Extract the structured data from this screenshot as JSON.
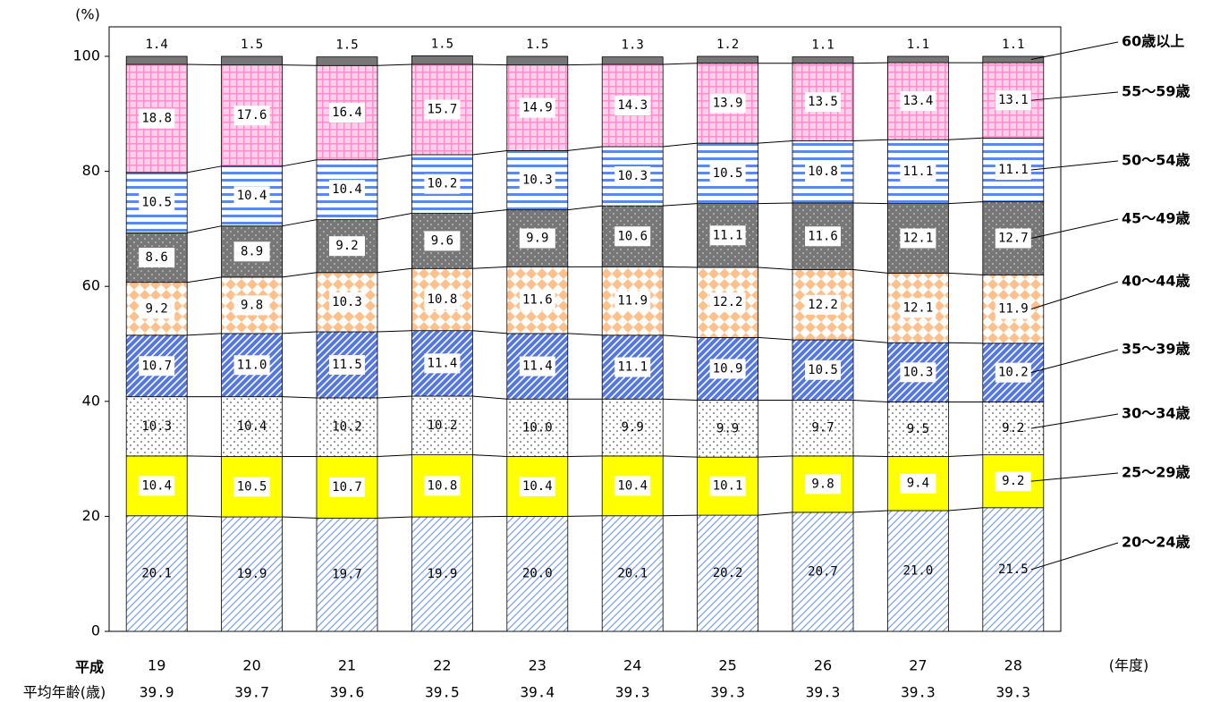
{
  "chart_data": {
    "type": "stacked-bar",
    "y_unit": "(%)",
    "x_prefix": "平成",
    "x_label": "(年度)",
    "categories": [
      "19",
      "20",
      "21",
      "22",
      "23",
      "24",
      "25",
      "26",
      "27",
      "28"
    ],
    "ylim": [
      0,
      100
    ],
    "yticks": [
      0,
      20,
      40,
      60,
      80,
      100
    ],
    "series": [
      {
        "name": "20～24歳",
        "color": "#7f9fe6",
        "pattern": "fine-diagonal",
        "values": [
          20.1,
          19.9,
          19.7,
          19.9,
          20.0,
          20.1,
          20.2,
          20.7,
          21.0,
          21.5
        ],
        "value_labels": [
          "20.1",
          "19.9",
          "19.7",
          "19.9",
          "20.0",
          "20.1",
          "20.2",
          "20.7",
          "21.0",
          "21.5"
        ]
      },
      {
        "name": "25～29歳",
        "color": "#ffff00",
        "pattern": "solid",
        "values": [
          10.4,
          10.5,
          10.7,
          10.8,
          10.4,
          10.4,
          10.1,
          9.8,
          9.4,
          9.2
        ],
        "value_labels": [
          "10.4",
          "10.5",
          "10.7",
          "10.8",
          "10.4",
          "10.4",
          "10.1",
          "9.8",
          "9.4",
          "9.2"
        ]
      },
      {
        "name": "30～34歳",
        "color": "#808080",
        "pattern": "dots",
        "values": [
          10.3,
          10.4,
          10.2,
          10.2,
          10.0,
          9.9,
          9.9,
          9.7,
          9.5,
          9.2
        ],
        "value_labels": [
          "10.3",
          "10.4",
          "10.2",
          "10.2",
          "10.0",
          "9.9",
          "9.9",
          "9.7",
          "9.5",
          "9.2"
        ]
      },
      {
        "name": "35～39歳",
        "color": "#5577e0",
        "pattern": "diagonal",
        "values": [
          10.7,
          11.0,
          11.5,
          11.4,
          11.4,
          11.1,
          10.9,
          10.5,
          10.3,
          10.2
        ],
        "value_labels": [
          "10.7",
          "11.0",
          "11.5",
          "11.4",
          "11.4",
          "11.1",
          "10.9",
          "10.5",
          "10.3",
          "10.2"
        ]
      },
      {
        "name": "40～44歳",
        "color": "#ffc08c",
        "pattern": "diamonds",
        "values": [
          9.2,
          9.8,
          10.3,
          10.8,
          11.6,
          11.9,
          12.2,
          12.2,
          12.1,
          11.9
        ],
        "value_labels": [
          "9.2",
          "9.8",
          "10.3",
          "10.8",
          "11.6",
          "11.9",
          "12.2",
          "12.2",
          "12.1",
          "11.9"
        ]
      },
      {
        "name": "45～49歳",
        "color": "#777777",
        "pattern": "dark-dots",
        "values": [
          8.6,
          8.9,
          9.2,
          9.6,
          9.9,
          10.6,
          11.1,
          11.6,
          12.1,
          12.7
        ],
        "value_labels": [
          "8.6",
          "8.9",
          "9.2",
          "9.6",
          "9.9",
          "10.6",
          "11.1",
          "11.6",
          "12.1",
          "12.7"
        ]
      },
      {
        "name": "50～54歳",
        "color": "#5b8ae6",
        "pattern": "horizontal",
        "values": [
          10.5,
          10.4,
          10.4,
          10.2,
          10.3,
          10.3,
          10.5,
          10.8,
          11.1,
          11.1
        ],
        "value_labels": [
          "10.5",
          "10.4",
          "10.4",
          "10.2",
          "10.3",
          "10.3",
          "10.5",
          "10.8",
          "11.1",
          "11.1"
        ]
      },
      {
        "name": "55～59歳",
        "color": "#ff8ccc",
        "pattern": "check",
        "values": [
          18.8,
          17.6,
          16.4,
          15.7,
          14.9,
          14.3,
          13.9,
          13.5,
          13.4,
          13.1
        ],
        "value_labels": [
          "18.8",
          "17.6",
          "16.4",
          "15.7",
          "14.9",
          "14.3",
          "13.9",
          "13.5",
          "13.4",
          "13.1"
        ]
      },
      {
        "name": "60歳以上",
        "color": "#777777",
        "pattern": "solid",
        "values": [
          1.4,
          1.5,
          1.5,
          1.5,
          1.5,
          1.3,
          1.2,
          1.1,
          1.1,
          1.1
        ],
        "value_labels": [
          "1.4",
          "1.5",
          "1.5",
          "1.5",
          "1.5",
          "1.3",
          "1.2",
          "1.1",
          "1.1",
          "1.1"
        ]
      }
    ],
    "average_age": {
      "label": "平均年齢(歳)",
      "values": [
        39.9,
        39.7,
        39.6,
        39.5,
        39.4,
        39.3,
        39.3,
        39.3,
        39.3,
        39.3
      ]
    }
  }
}
